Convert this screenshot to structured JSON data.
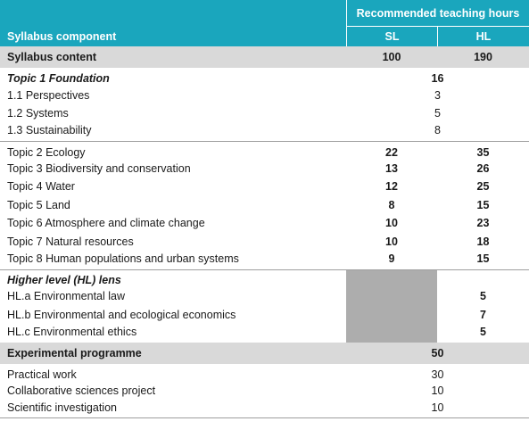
{
  "header": {
    "component_label": "Syllabus component",
    "hours_label": "Recommended teaching hours",
    "sl_label": "SL",
    "hl_label": "HL"
  },
  "syllabus": {
    "label": "Syllabus content",
    "sl": "100",
    "hl": "190"
  },
  "topic1": {
    "title": "Topic 1 Foundation",
    "total": "16",
    "items": [
      {
        "label": "1.1 Perspectives",
        "hours": "3"
      },
      {
        "label": "1.2 Systems",
        "hours": "5"
      },
      {
        "label": "1.3 Sustainability",
        "hours": "8"
      }
    ]
  },
  "topics": [
    {
      "label": "Topic 2 Ecology",
      "sl": "22",
      "hl": "35"
    },
    {
      "label": "Topic 3 Biodiversity and conservation",
      "sl": "13",
      "hl": "26"
    },
    {
      "label": "Topic 4 Water",
      "sl": "12",
      "hl": "25"
    },
    {
      "label": "Topic 5 Land",
      "sl": "8",
      "hl": "15"
    },
    {
      "label": "Topic 6 Atmosphere and climate change",
      "sl": "10",
      "hl": "23"
    },
    {
      "label": "Topic 7 Natural resources",
      "sl": "10",
      "hl": "18"
    },
    {
      "label": "Topic 8 Human populations and urban systems",
      "sl": "9",
      "hl": "15"
    }
  ],
  "hl_lens": {
    "title": "Higher level (HL) lens",
    "items": [
      {
        "label": "HL.a Environmental law",
        "hl": "5"
      },
      {
        "label": "HL.b Environmental and ecological economics",
        "hl": "7"
      },
      {
        "label": "HL.c Environmental ethics",
        "hl": "5"
      }
    ]
  },
  "experimental": {
    "label": "Experimental programme",
    "total": "50",
    "items": [
      {
        "label": "Practical work",
        "hours": "30"
      },
      {
        "label": "Collaborative sciences project",
        "hours": "10"
      },
      {
        "label": "Scientific investigation",
        "hours": "10"
      }
    ]
  },
  "colors": {
    "header_teal": "#1aa6bd",
    "section_grey": "#d9d9d9",
    "hl_block_grey": "#adadad"
  }
}
